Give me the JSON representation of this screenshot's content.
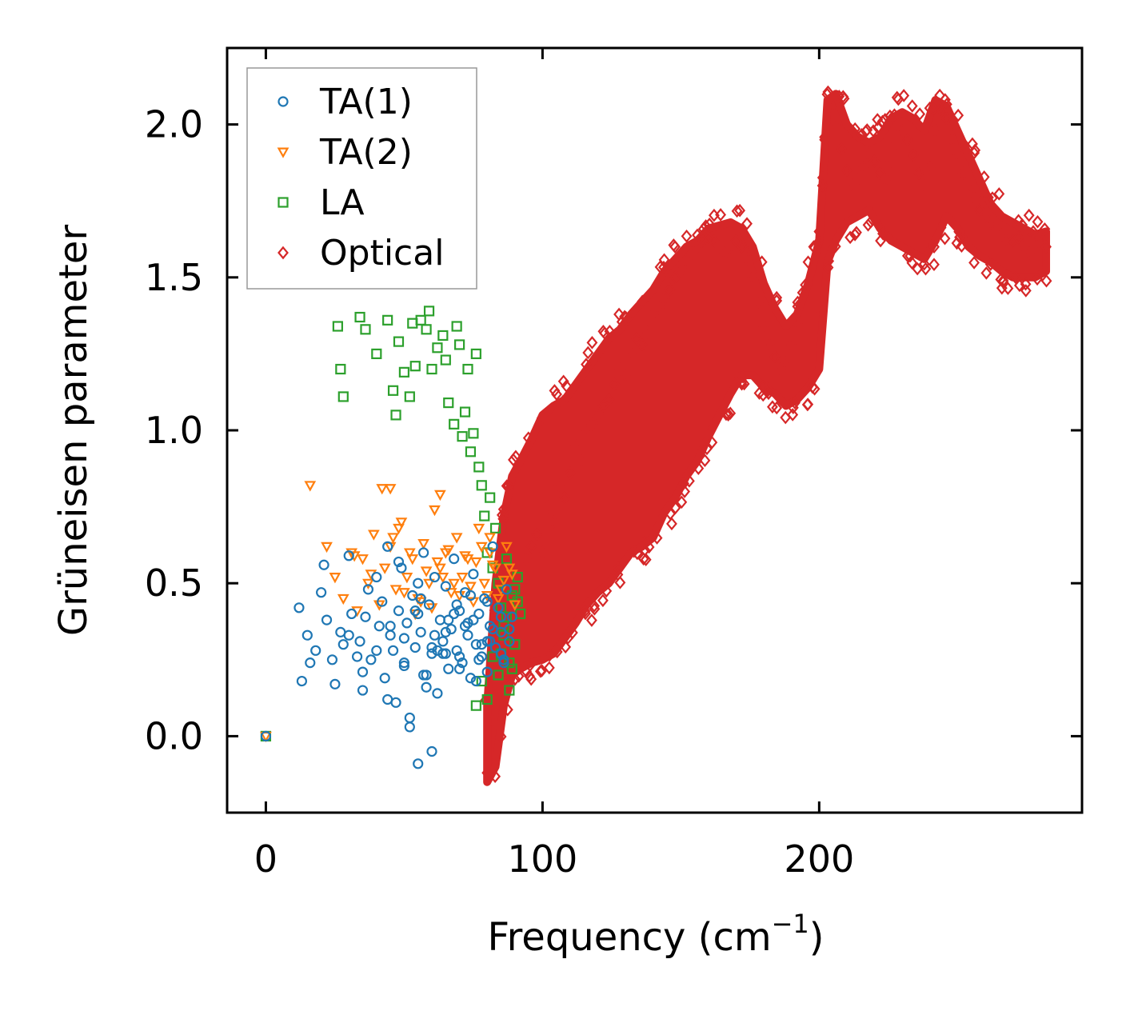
{
  "chart_data": {
    "type": "scatter",
    "title": "",
    "xlabel": "Frequency (cm",
    "xlabel_sup": "−1",
    "xlabel_close": ")",
    "ylabel": "Grüneisen parameter",
    "xlim": [
      -14,
      295
    ],
    "ylim": [
      -0.25,
      2.25
    ],
    "xticks": [
      0,
      100,
      200
    ],
    "xtick_labels": [
      "0",
      "100",
      "200"
    ],
    "yticks": [
      0.0,
      0.5,
      1.0,
      1.5,
      2.0
    ],
    "ytick_labels": [
      "0.0",
      "0.5",
      "1.0",
      "1.5",
      "2.0"
    ],
    "legend_position": "upper-left",
    "series": [
      {
        "name": "TA(1)",
        "marker": "circle",
        "color": "#1f77b4",
        "x": [
          0,
          12,
          13,
          15,
          16,
          18,
          20,
          21,
          22,
          24,
          25,
          27,
          28,
          30,
          31,
          33,
          34,
          35,
          36,
          37,
          38,
          40,
          41,
          42,
          43,
          44,
          45,
          46,
          47,
          48,
          49,
          50,
          51,
          52,
          53,
          54,
          55,
          56,
          57,
          58,
          59,
          60,
          61,
          62,
          63,
          64,
          65,
          66,
          67,
          68,
          69,
          70,
          71,
          72,
          73,
          74,
          75,
          76,
          77,
          78,
          79,
          80,
          81,
          82,
          83,
          84,
          85,
          86,
          87,
          88,
          89,
          44,
          48,
          52,
          56,
          60,
          64,
          68,
          72,
          76,
          80,
          50,
          55,
          58,
          62,
          66,
          70,
          74,
          78,
          82,
          86,
          54,
          57,
          61,
          65,
          69,
          73,
          77,
          81,
          85,
          30,
          35,
          40,
          45,
          50,
          55,
          60,
          65,
          70,
          75,
          80,
          85,
          88
        ],
        "y": [
          0.0,
          0.42,
          0.18,
          0.33,
          0.24,
          0.28,
          0.47,
          0.56,
          0.38,
          0.25,
          0.17,
          0.34,
          0.3,
          0.59,
          0.4,
          0.26,
          0.31,
          0.15,
          0.39,
          0.48,
          0.25,
          0.52,
          0.36,
          0.44,
          0.19,
          0.62,
          0.33,
          0.28,
          0.11,
          0.41,
          0.55,
          0.23,
          0.37,
          0.06,
          0.46,
          0.29,
          -0.09,
          0.34,
          0.6,
          0.2,
          0.43,
          0.27,
          0.52,
          0.14,
          0.38,
          0.31,
          0.49,
          0.22,
          0.35,
          0.58,
          0.28,
          0.41,
          0.24,
          0.47,
          0.33,
          0.19,
          0.53,
          0.3,
          0.4,
          0.26,
          0.45,
          0.21,
          0.36,
          0.62,
          0.29,
          0.42,
          0.34,
          0.25,
          0.48,
          0.31,
          0.39,
          0.12,
          0.57,
          0.03,
          0.45,
          -0.05,
          0.27,
          0.4,
          0.36,
          0.18,
          0.44,
          0.32,
          0.5,
          0.16,
          0.28,
          0.38,
          0.22,
          0.46,
          0.3,
          0.35,
          0.24,
          0.41,
          0.2,
          0.33,
          0.27,
          0.43,
          0.37,
          0.25,
          0.31,
          0.39,
          0.33,
          0.21,
          0.28,
          0.36,
          0.24,
          0.4,
          0.29,
          0.34,
          0.26,
          0.38,
          0.31,
          0.27,
          0.35
        ]
      },
      {
        "name": "TA(2)",
        "marker": "triangle-down",
        "color": "#ff7f0e",
        "x": [
          0,
          16,
          22,
          25,
          28,
          31,
          33,
          35,
          37,
          39,
          41,
          43,
          45,
          47,
          49,
          51,
          53,
          55,
          57,
          59,
          61,
          63,
          65,
          67,
          69,
          71,
          73,
          75,
          77,
          79,
          81,
          83,
          85,
          87,
          89,
          32,
          38,
          46,
          54,
          62,
          70,
          78,
          86,
          42,
          50,
          58,
          66,
          74,
          82,
          90,
          48,
          56,
          64,
          72,
          80,
          88,
          52,
          60,
          68,
          76,
          84,
          45,
          63,
          81
        ],
        "y": [
          0.0,
          0.82,
          0.62,
          0.52,
          0.45,
          0.6,
          0.41,
          0.58,
          0.5,
          0.66,
          0.43,
          0.55,
          0.62,
          0.48,
          0.7,
          0.52,
          0.58,
          0.45,
          0.63,
          0.5,
          0.74,
          0.55,
          0.6,
          0.47,
          0.65,
          0.52,
          0.58,
          0.44,
          0.68,
          0.5,
          0.6,
          0.55,
          0.48,
          0.62,
          0.53,
          0.59,
          0.53,
          0.65,
          0.4,
          0.57,
          0.46,
          0.62,
          0.51,
          0.81,
          0.47,
          0.54,
          0.61,
          0.49,
          0.56,
          0.43,
          0.68,
          0.44,
          0.52,
          0.59,
          0.46,
          0.55,
          0.6,
          0.42,
          0.5,
          0.57,
          0.45,
          0.81,
          0.79,
          0.65
        ]
      },
      {
        "name": "LA",
        "marker": "square",
        "color": "#2ca02c",
        "x": [
          0,
          26,
          27,
          28,
          34,
          36,
          40,
          44,
          46,
          47,
          48,
          50,
          52,
          53,
          54,
          56,
          58,
          59,
          60,
          62,
          64,
          65,
          66,
          68,
          69,
          70,
          71,
          72,
          73,
          74,
          75,
          76,
          77,
          78,
          79,
          80,
          81,
          82,
          83,
          84,
          85,
          86,
          87,
          88,
          89,
          90,
          91,
          92,
          84,
          86,
          88,
          90,
          85,
          87,
          89,
          91,
          80,
          82,
          78,
          76
        ],
        "y": [
          0.0,
          1.34,
          1.2,
          1.11,
          1.37,
          1.33,
          1.25,
          1.36,
          1.13,
          1.05,
          1.29,
          1.19,
          1.11,
          1.35,
          1.21,
          1.36,
          1.33,
          1.39,
          1.2,
          1.27,
          1.31,
          1.23,
          1.09,
          1.02,
          1.34,
          1.28,
          0.98,
          1.06,
          1.2,
          0.93,
          0.99,
          1.25,
          0.88,
          0.82,
          0.72,
          0.6,
          0.78,
          0.55,
          0.68,
          0.5,
          0.42,
          0.36,
          0.58,
          0.24,
          0.46,
          0.3,
          0.52,
          0.4,
          0.2,
          0.33,
          0.15,
          0.48,
          0.27,
          0.39,
          0.22,
          0.44,
          0.12,
          0.26,
          0.18,
          0.1
        ]
      },
      {
        "name": "Optical",
        "marker": "diamond",
        "color": "#d62728",
        "x": [
          80,
          82,
          84,
          86,
          88,
          90,
          92,
          94,
          96,
          98,
          100,
          102,
          104,
          106,
          108,
          110,
          112,
          114,
          116,
          118,
          120,
          122,
          124,
          126,
          128,
          130,
          132,
          134,
          136,
          138,
          140,
          142,
          144,
          146,
          148,
          150,
          152,
          154,
          156,
          158,
          160,
          162,
          164,
          166,
          168,
          170,
          172,
          174,
          176,
          178,
          180,
          182,
          184,
          186,
          188,
          190,
          192,
          194,
          196,
          198,
          200,
          202,
          204,
          206,
          208,
          210,
          212,
          214,
          216,
          218,
          220,
          222,
          224,
          226,
          228,
          230,
          232,
          234,
          236,
          238,
          240,
          242,
          244,
          246,
          248,
          250,
          252,
          254,
          256,
          258,
          260,
          262,
          264,
          266,
          268,
          270,
          272,
          274,
          276,
          278,
          280,
          282
        ],
        "y": [
          -0.12,
          0.05,
          0.35,
          0.55,
          0.62,
          0.45,
          0.5,
          0.58,
          0.62,
          0.66,
          0.6,
          0.75,
          0.7,
          0.82,
          0.78,
          0.86,
          0.95,
          0.9,
          1.0,
          1.02,
          1.05,
          1.08,
          1.1,
          1.15,
          1.2,
          1.18,
          1.25,
          1.3,
          1.28,
          1.32,
          1.38,
          1.4,
          1.43,
          1.46,
          1.5,
          1.52,
          1.55,
          1.58,
          1.6,
          1.62,
          1.63,
          1.62,
          1.6,
          1.58,
          1.6,
          1.62,
          1.6,
          1.56,
          1.5,
          1.42,
          1.34,
          1.28,
          1.24,
          1.2,
          1.22,
          1.28,
          1.35,
          1.45,
          1.55,
          1.6,
          1.65,
          1.95,
          2.05,
          2.0,
          1.92,
          1.85,
          1.8,
          1.82,
          1.86,
          1.9,
          1.88,
          1.84,
          1.82,
          1.88,
          1.94,
          1.98,
          1.95,
          1.9,
          1.84,
          1.8,
          1.86,
          1.98,
          2.05,
          2.02,
          1.95,
          1.9,
          1.84,
          1.8,
          1.76,
          1.72,
          1.7,
          1.68,
          1.66,
          1.64,
          1.62,
          1.62,
          1.63,
          1.6,
          1.58,
          1.6,
          1.62,
          1.6
        ],
        "band": [
          [
            80,
            -0.15,
            0.1
          ],
          [
            83,
            -0.1,
            0.5
          ],
          [
            86,
            0.1,
            0.72
          ],
          [
            89,
            0.2,
            0.85
          ],
          [
            92,
            0.22,
            0.9
          ],
          [
            96,
            0.24,
            0.97
          ],
          [
            100,
            0.25,
            1.05
          ],
          [
            104,
            0.27,
            1.08
          ],
          [
            108,
            0.32,
            1.1
          ],
          [
            112,
            0.37,
            1.15
          ],
          [
            116,
            0.43,
            1.2
          ],
          [
            120,
            0.47,
            1.25
          ],
          [
            124,
            0.5,
            1.3
          ],
          [
            128,
            0.55,
            1.33
          ],
          [
            132,
            0.6,
            1.38
          ],
          [
            136,
            0.62,
            1.42
          ],
          [
            140,
            0.65,
            1.46
          ],
          [
            144,
            0.73,
            1.52
          ],
          [
            148,
            0.78,
            1.56
          ],
          [
            152,
            0.85,
            1.6
          ],
          [
            156,
            0.9,
            1.62
          ],
          [
            160,
            0.98,
            1.66
          ],
          [
            164,
            1.05,
            1.67
          ],
          [
            168,
            1.12,
            1.68
          ],
          [
            172,
            1.18,
            1.66
          ],
          [
            176,
            1.18,
            1.6
          ],
          [
            180,
            1.14,
            1.48
          ],
          [
            184,
            1.12,
            1.4
          ],
          [
            188,
            1.08,
            1.34
          ],
          [
            192,
            1.1,
            1.38
          ],
          [
            196,
            1.14,
            1.48
          ],
          [
            200,
            1.2,
            1.62
          ],
          [
            203,
            1.55,
            2.08
          ],
          [
            206,
            1.62,
            2.1
          ],
          [
            210,
            1.68,
            2.0
          ],
          [
            214,
            1.7,
            1.96
          ],
          [
            218,
            1.72,
            1.94
          ],
          [
            222,
            1.66,
            1.96
          ],
          [
            226,
            1.62,
            2.02
          ],
          [
            230,
            1.6,
            2.04
          ],
          [
            234,
            1.58,
            2.02
          ],
          [
            238,
            1.56,
            1.98
          ],
          [
            242,
            1.62,
            2.08
          ],
          [
            246,
            1.7,
            2.06
          ],
          [
            250,
            1.66,
            1.98
          ],
          [
            254,
            1.6,
            1.9
          ],
          [
            258,
            1.57,
            1.82
          ],
          [
            262,
            1.55,
            1.74
          ],
          [
            266,
            1.52,
            1.7
          ],
          [
            270,
            1.5,
            1.68
          ],
          [
            274,
            1.5,
            1.66
          ],
          [
            278,
            1.5,
            1.64
          ],
          [
            282,
            1.52,
            1.65
          ]
        ]
      }
    ]
  }
}
